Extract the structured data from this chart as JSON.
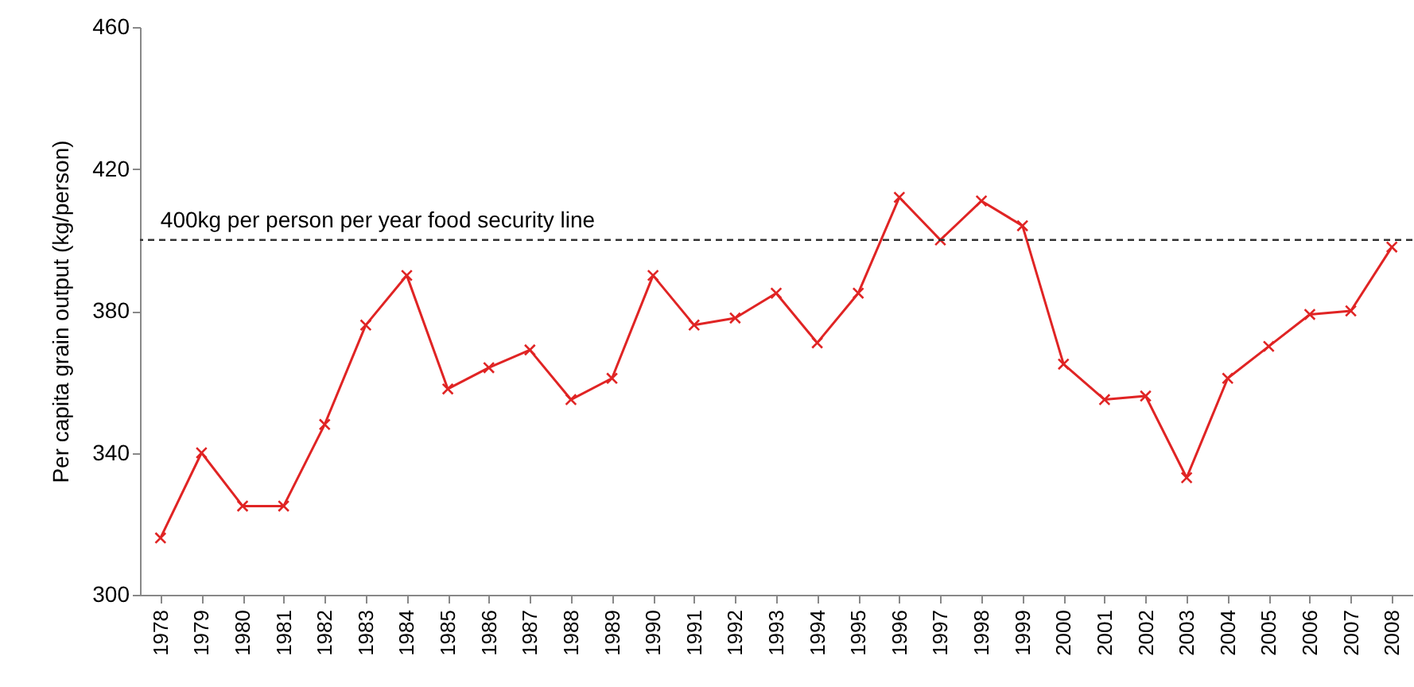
{
  "chart_data": {
    "type": "line",
    "ylabel": "Per capita grain output (kg/person)",
    "categories": [
      "1978",
      "1979",
      "1980",
      "1981",
      "1982",
      "1983",
      "1984",
      "1985",
      "1986",
      "1987",
      "1988",
      "1989",
      "1990",
      "1991",
      "1992",
      "1993",
      "1994",
      "1995",
      "1996",
      "1997",
      "1998",
      "1999",
      "2000",
      "2001",
      "2002",
      "2003",
      "2004",
      "2005",
      "2006",
      "2007",
      "2008"
    ],
    "series": [
      {
        "color": "#e02424",
        "values": [
          316,
          340,
          325,
          325,
          348,
          376,
          390,
          358,
          364,
          369,
          355,
          361,
          390,
          376,
          378,
          385,
          371,
          385,
          412,
          400,
          411,
          404,
          365,
          355,
          356,
          333,
          361,
          370,
          379,
          380,
          398
        ]
      }
    ],
    "ylim": [
      300,
      460
    ],
    "yticks": [
      300,
      340,
      380,
      420,
      460
    ],
    "marker": "cross",
    "line_style": "solid",
    "ref_lines": [
      {
        "axis": "y",
        "value": 400,
        "label": "400kg per person per year food security line",
        "color": "#333333",
        "line_style": "dashed"
      }
    ]
  }
}
